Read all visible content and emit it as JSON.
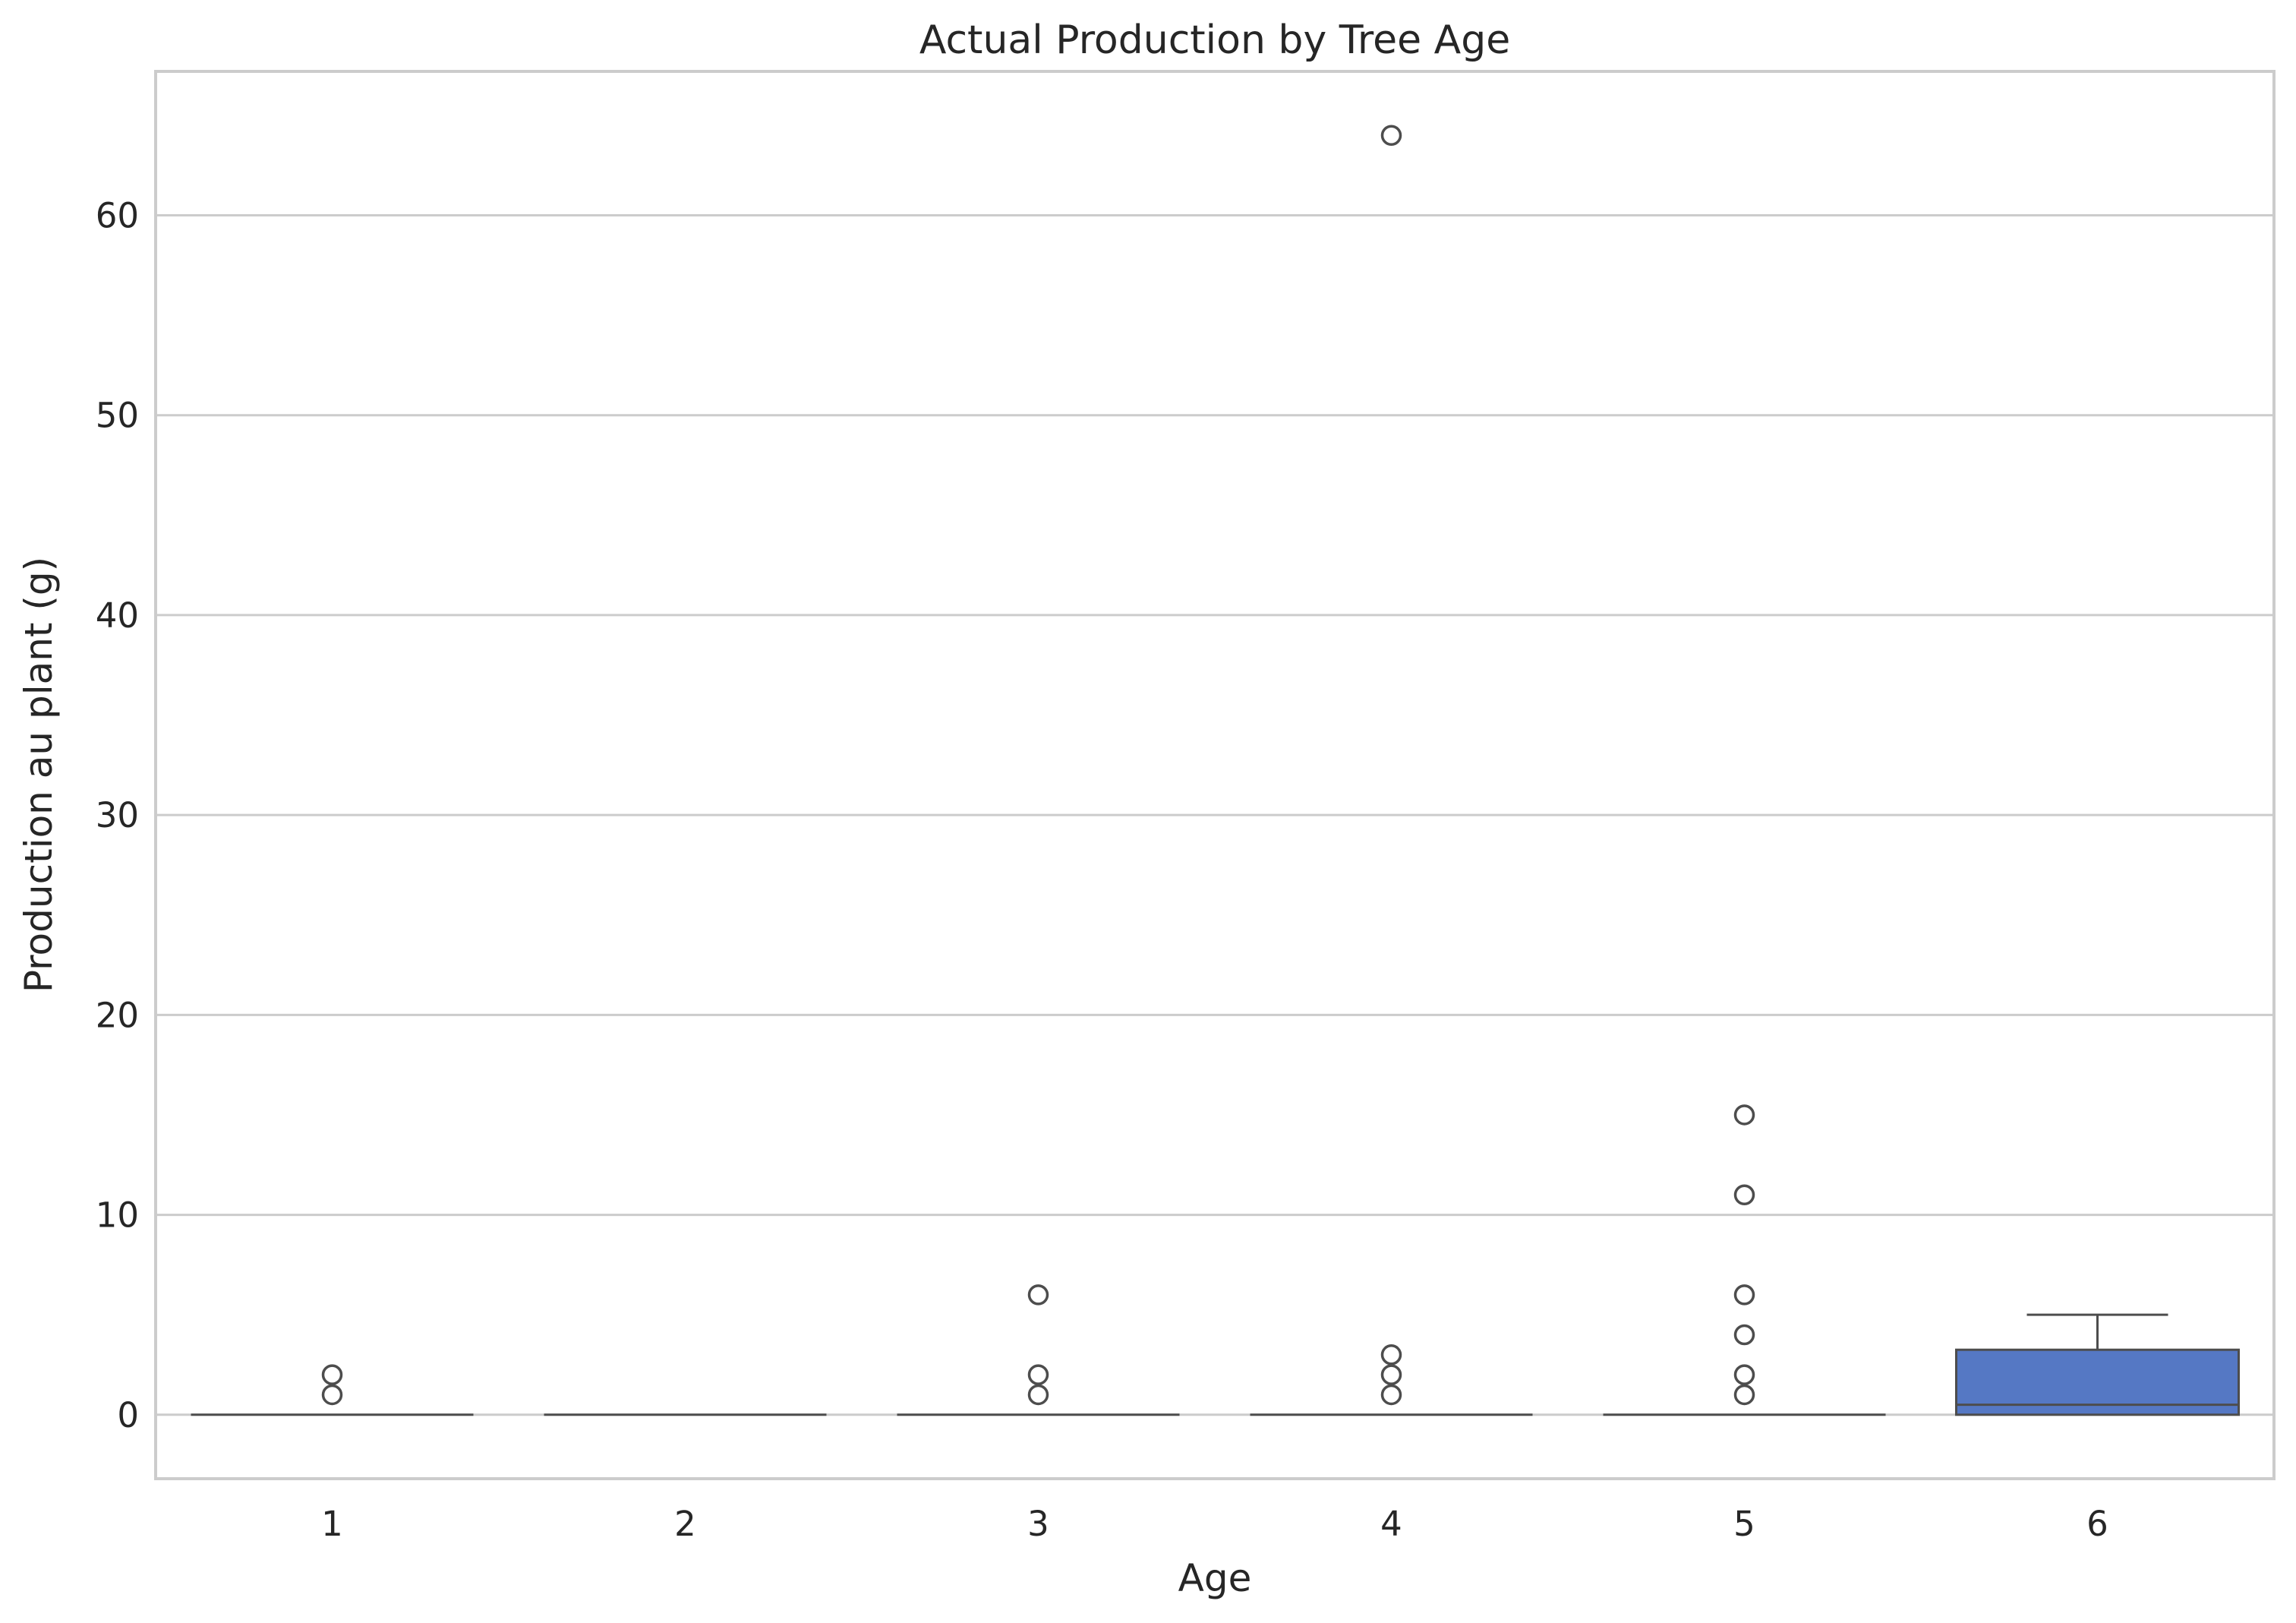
{
  "chart_data": {
    "type": "box",
    "title": "Actual Production by Tree Age",
    "xlabel": "Age",
    "ylabel": "Production au plant (g)",
    "categories": [
      "1",
      "2",
      "3",
      "4",
      "5",
      "6"
    ],
    "ylim": [
      -3.2,
      67.2
    ],
    "yticks": [
      0,
      10,
      20,
      30,
      40,
      50,
      60
    ],
    "grid": true,
    "box_color": "#5578c4",
    "boxes": [
      {
        "category": "1",
        "q1": 0,
        "median": 0,
        "q3": 0,
        "whisker_low": 0,
        "whisker_high": 0,
        "outliers": [
          1,
          2
        ]
      },
      {
        "category": "2",
        "q1": 0,
        "median": 0,
        "q3": 0,
        "whisker_low": 0,
        "whisker_high": 0,
        "outliers": []
      },
      {
        "category": "3",
        "q1": 0,
        "median": 0,
        "q3": 0,
        "whisker_low": 0,
        "whisker_high": 0,
        "outliers": [
          1,
          2,
          6
        ]
      },
      {
        "category": "4",
        "q1": 0,
        "median": 0,
        "q3": 0,
        "whisker_low": 0,
        "whisker_high": 0,
        "outliers": [
          1,
          2,
          3,
          64
        ]
      },
      {
        "category": "5",
        "q1": 0,
        "median": 0,
        "q3": 0,
        "whisker_low": 0,
        "whisker_high": 0,
        "outliers": [
          1,
          2,
          4,
          6,
          11,
          15
        ]
      },
      {
        "category": "6",
        "q1": 0,
        "median": 0.5,
        "q3": 3.25,
        "whisker_low": 0,
        "whisker_high": 5,
        "outliers": []
      }
    ]
  }
}
